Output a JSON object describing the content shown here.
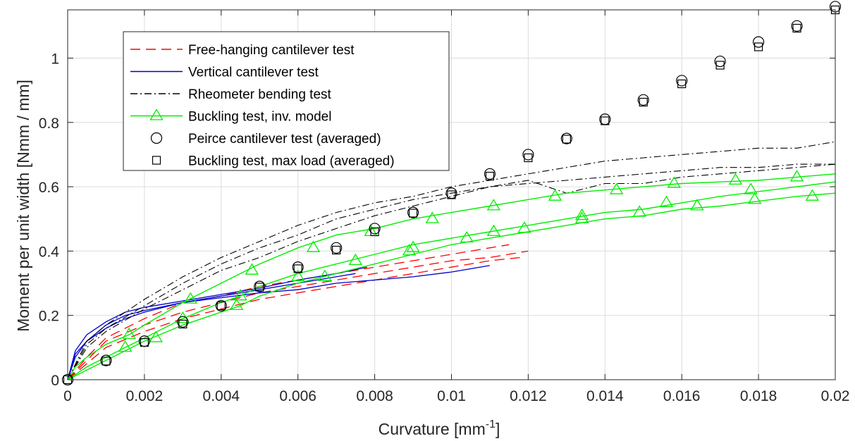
{
  "chart_data": {
    "type": "line",
    "xlabel": "Curvature [mm",
    "xlabel_sup": "-1",
    "xlabel_end": "]",
    "ylabel": "Moment per unit width [Nmm / mm]",
    "xlim": [
      0,
      0.02
    ],
    "ylim": [
      0,
      1.15
    ],
    "grid": true,
    "legend_position": "top-left",
    "x_ticks": [
      0,
      0.002,
      0.004,
      0.006,
      0.008,
      0.01,
      0.012,
      0.014,
      0.016,
      0.018,
      0.02
    ],
    "x_tick_labels": [
      "0",
      "0.002",
      "0.004",
      "0.006",
      "0.008",
      "0.01",
      "0.012",
      "0.014",
      "0.016",
      "0.018",
      "0.02"
    ],
    "y_ticks": [
      0,
      0.2,
      0.4,
      0.6,
      0.8,
      1.0
    ],
    "y_tick_labels": [
      "0",
      "0.2",
      "0.4",
      "0.6",
      "0.8",
      "1"
    ],
    "legend": [
      {
        "label": "Free-hanging cantilever test",
        "color": "#ff0000",
        "style": "dashed"
      },
      {
        "label": "Vertical cantilever test",
        "color": "#0000cc",
        "style": "solid"
      },
      {
        "label": "Rheometer bending test",
        "color": "#000000",
        "style": "dashdot"
      },
      {
        "label": "Buckling test, inv. model",
        "color": "#00ee00",
        "style": "solid",
        "marker": "triangle"
      },
      {
        "label": "Peirce cantilever test (averaged)",
        "color": "#000000",
        "style": "none",
        "marker": "circle"
      },
      {
        "label": "Buckling test, max load (averaged)",
        "color": "#000000",
        "style": "none",
        "marker": "square"
      }
    ],
    "series": [
      {
        "name": "Free-hanging cantilever test",
        "group": "free_hanging",
        "x": [
          0,
          0.0005,
          0.001,
          0.002,
          0.003,
          0.004,
          0.005,
          0.006,
          0.007,
          0.008,
          0.009,
          0.01,
          0.011,
          0.0115
        ],
        "y": [
          0,
          0.07,
          0.13,
          0.19,
          0.24,
          0.26,
          0.29,
          0.31,
          0.33,
          0.35,
          0.37,
          0.39,
          0.41,
          0.42
        ]
      },
      {
        "name": "Free-hanging cantilever test",
        "group": "free_hanging",
        "x": [
          0,
          0.0005,
          0.001,
          0.002,
          0.003,
          0.004,
          0.005,
          0.006,
          0.007,
          0.008,
          0.009,
          0.01,
          0.011,
          0.012
        ],
        "y": [
          0,
          0.06,
          0.12,
          0.17,
          0.21,
          0.24,
          0.27,
          0.29,
          0.31,
          0.33,
          0.35,
          0.37,
          0.38,
          0.4
        ]
      },
      {
        "name": "Free-hanging cantilever test",
        "group": "free_hanging",
        "x": [
          0,
          0.0005,
          0.001,
          0.002,
          0.003,
          0.004,
          0.005,
          0.006,
          0.007,
          0.008,
          0.009,
          0.01,
          0.011,
          0.0118
        ],
        "y": [
          0,
          0.05,
          0.1,
          0.15,
          0.19,
          0.22,
          0.25,
          0.27,
          0.29,
          0.31,
          0.33,
          0.35,
          0.37,
          0.38
        ]
      },
      {
        "name": "Vertical cantilever test",
        "group": "vertical",
        "x": [
          0,
          0.0002,
          0.0005,
          0.001,
          0.0015,
          0.002,
          0.003,
          0.004,
          0.005,
          0.006,
          0.007,
          0.0075
        ],
        "y": [
          0,
          0.08,
          0.12,
          0.16,
          0.19,
          0.21,
          0.24,
          0.26,
          0.28,
          0.3,
          0.32,
          0.33
        ]
      },
      {
        "name": "Vertical cantilever test",
        "group": "vertical",
        "x": [
          0,
          0.0002,
          0.0005,
          0.001,
          0.0015,
          0.002,
          0.003,
          0.004,
          0.005,
          0.006,
          0.007,
          0.008,
          0.009,
          0.01,
          0.011
        ],
        "y": [
          0,
          0.07,
          0.12,
          0.17,
          0.2,
          0.215,
          0.24,
          0.255,
          0.27,
          0.28,
          0.3,
          0.31,
          0.32,
          0.335,
          0.355
        ]
      },
      {
        "name": "Vertical cantilever test",
        "group": "vertical",
        "x": [
          0,
          0.0002,
          0.0005,
          0.001,
          0.0015,
          0.002,
          0.003,
          0.004,
          0.005,
          0.006,
          0.007,
          0.0078
        ],
        "y": [
          0,
          0.09,
          0.14,
          0.18,
          0.21,
          0.225,
          0.245,
          0.265,
          0.285,
          0.31,
          0.33,
          0.35
        ]
      },
      {
        "name": "Rheometer bending test",
        "group": "rheometer",
        "x": [
          0,
          0.0005,
          0.001,
          0.002,
          0.003,
          0.004,
          0.005,
          0.006,
          0.007,
          0.008,
          0.009,
          0.01,
          0.011,
          0.012,
          0.013,
          0.014,
          0.015,
          0.016,
          0.017,
          0.018,
          0.019,
          0.02
        ],
        "y": [
          0,
          0.12,
          0.17,
          0.25,
          0.32,
          0.38,
          0.43,
          0.48,
          0.52,
          0.55,
          0.57,
          0.6,
          0.62,
          0.64,
          0.66,
          0.68,
          0.69,
          0.7,
          0.71,
          0.72,
          0.72,
          0.74
        ]
      },
      {
        "name": "Rheometer bending test",
        "group": "rheometer",
        "x": [
          0,
          0.0005,
          0.001,
          0.002,
          0.003,
          0.004,
          0.005,
          0.006,
          0.007,
          0.008,
          0.009,
          0.01,
          0.011,
          0.012,
          0.013,
          0.014,
          0.015,
          0.016,
          0.017,
          0.018,
          0.019,
          0.02
        ],
        "y": [
          0,
          0.11,
          0.16,
          0.23,
          0.3,
          0.36,
          0.41,
          0.45,
          0.5,
          0.53,
          0.56,
          0.58,
          0.6,
          0.61,
          0.62,
          0.63,
          0.64,
          0.65,
          0.66,
          0.66,
          0.67,
          0.67
        ]
      },
      {
        "name": "Rheometer bending test",
        "group": "rheometer",
        "x": [
          0,
          0.0005,
          0.001,
          0.002,
          0.003,
          0.004,
          0.005,
          0.006,
          0.007,
          0.008,
          0.009,
          0.01,
          0.011,
          0.012,
          0.013,
          0.014,
          0.015,
          0.016,
          0.017,
          0.018,
          0.019,
          0.02
        ],
        "y": [
          0,
          0.1,
          0.15,
          0.22,
          0.28,
          0.34,
          0.38,
          0.43,
          0.47,
          0.51,
          0.54,
          0.57,
          0.6,
          0.62,
          0.58,
          0.61,
          0.61,
          0.63,
          0.64,
          0.65,
          0.66,
          0.67
        ]
      },
      {
        "name": "Buckling test, inv. model",
        "group": "buckling_inv",
        "x": [
          0,
          0.0002,
          0.0005,
          0.001,
          0.0016,
          0.002,
          0.003,
          0.004,
          0.005,
          0.006,
          0.007,
          0.008,
          0.009,
          0.01,
          0.011,
          0.012,
          0.013,
          0.014,
          0.015,
          0.016,
          0.017,
          0.018,
          0.019,
          0.02
        ],
        "y": [
          0,
          0.04,
          0.07,
          0.11,
          0.14,
          0.17,
          0.24,
          0.3,
          0.36,
          0.41,
          0.45,
          0.47,
          0.5,
          0.52,
          0.54,
          0.56,
          0.58,
          0.59,
          0.6,
          0.61,
          0.615,
          0.62,
          0.63,
          0.64
        ]
      },
      {
        "name": "Buckling test, inv. model",
        "group": "buckling_inv",
        "x": [
          0,
          0.0005,
          0.001,
          0.0015,
          0.002,
          0.003,
          0.004,
          0.0045,
          0.005,
          0.006,
          0.007,
          0.008,
          0.009,
          0.01,
          0.011,
          0.012,
          0.013,
          0.014,
          0.015,
          0.016,
          0.017,
          0.018,
          0.019,
          0.02
        ],
        "y": [
          0,
          0.04,
          0.07,
          0.1,
          0.13,
          0.19,
          0.24,
          0.26,
          0.29,
          0.33,
          0.36,
          0.39,
          0.42,
          0.44,
          0.46,
          0.48,
          0.5,
          0.52,
          0.53,
          0.55,
          0.57,
          0.585,
          0.6,
          0.615
        ]
      },
      {
        "name": "Buckling test, inv. model",
        "group": "buckling_inv",
        "x": [
          0,
          0.0005,
          0.001,
          0.0015,
          0.002,
          0.003,
          0.004,
          0.0045,
          0.005,
          0.006,
          0.007,
          0.008,
          0.009,
          0.01,
          0.011,
          0.012,
          0.013,
          0.014,
          0.015,
          0.016,
          0.017,
          0.018,
          0.019,
          0.02
        ],
        "y": [
          0,
          0.03,
          0.06,
          0.09,
          0.12,
          0.17,
          0.21,
          0.23,
          0.26,
          0.3,
          0.33,
          0.36,
          0.39,
          0.42,
          0.44,
          0.46,
          0.48,
          0.5,
          0.51,
          0.53,
          0.54,
          0.555,
          0.57,
          0.58
        ]
      },
      {
        "name": "Buckling test, inv. model markers",
        "group": "buckling_inv_markers",
        "x": [
          0.0016,
          0.0032,
          0.0048,
          0.0064,
          0.0079,
          0.0095,
          0.0111,
          0.0127,
          0.0143,
          0.0158,
          0.0174,
          0.019,
          0.0015,
          0.003,
          0.0045,
          0.006,
          0.0075,
          0.009,
          0.0104,
          0.0119,
          0.0134,
          0.0149,
          0.0164,
          0.0179,
          0.0194,
          0.0023,
          0.0044,
          0.0067,
          0.0089,
          0.0111,
          0.0134,
          0.0156,
          0.0178
        ],
        "y": [
          0.14,
          0.25,
          0.34,
          0.41,
          0.46,
          0.5,
          0.54,
          0.57,
          0.59,
          0.61,
          0.62,
          0.63,
          0.1,
          0.19,
          0.26,
          0.32,
          0.37,
          0.41,
          0.44,
          0.47,
          0.5,
          0.52,
          0.54,
          0.56,
          0.57,
          0.13,
          0.23,
          0.32,
          0.4,
          0.46,
          0.51,
          0.55,
          0.59
        ]
      },
      {
        "name": "Peirce cantilever test (averaged)",
        "group": "peirce",
        "x": [
          0,
          0.001,
          0.002,
          0.003,
          0.004,
          0.005,
          0.006,
          0.007,
          0.008,
          0.009,
          0.01,
          0.011,
          0.012,
          0.013,
          0.014,
          0.015,
          0.016,
          0.017,
          0.018,
          0.019,
          0.02
        ],
        "y": [
          0,
          0.06,
          0.12,
          0.18,
          0.23,
          0.29,
          0.35,
          0.41,
          0.47,
          0.52,
          0.58,
          0.64,
          0.7,
          0.75,
          0.81,
          0.87,
          0.93,
          0.99,
          1.05,
          1.1,
          1.16
        ]
      },
      {
        "name": "Buckling test, max load (averaged)",
        "group": "buckling_max",
        "x": [
          0,
          0.001,
          0.002,
          0.003,
          0.004,
          0.005,
          0.006,
          0.007,
          0.008,
          0.009,
          0.01,
          0.011,
          0.012,
          0.013,
          0.014,
          0.015,
          0.016,
          0.017,
          0.018,
          0.019,
          0.02
        ],
        "y": [
          0,
          0.058,
          0.116,
          0.173,
          0.23,
          0.288,
          0.345,
          0.403,
          0.46,
          0.518,
          0.575,
          0.633,
          0.69,
          0.748,
          0.805,
          0.863,
          0.92,
          0.978,
          1.035,
          1.093,
          1.15
        ]
      }
    ]
  }
}
